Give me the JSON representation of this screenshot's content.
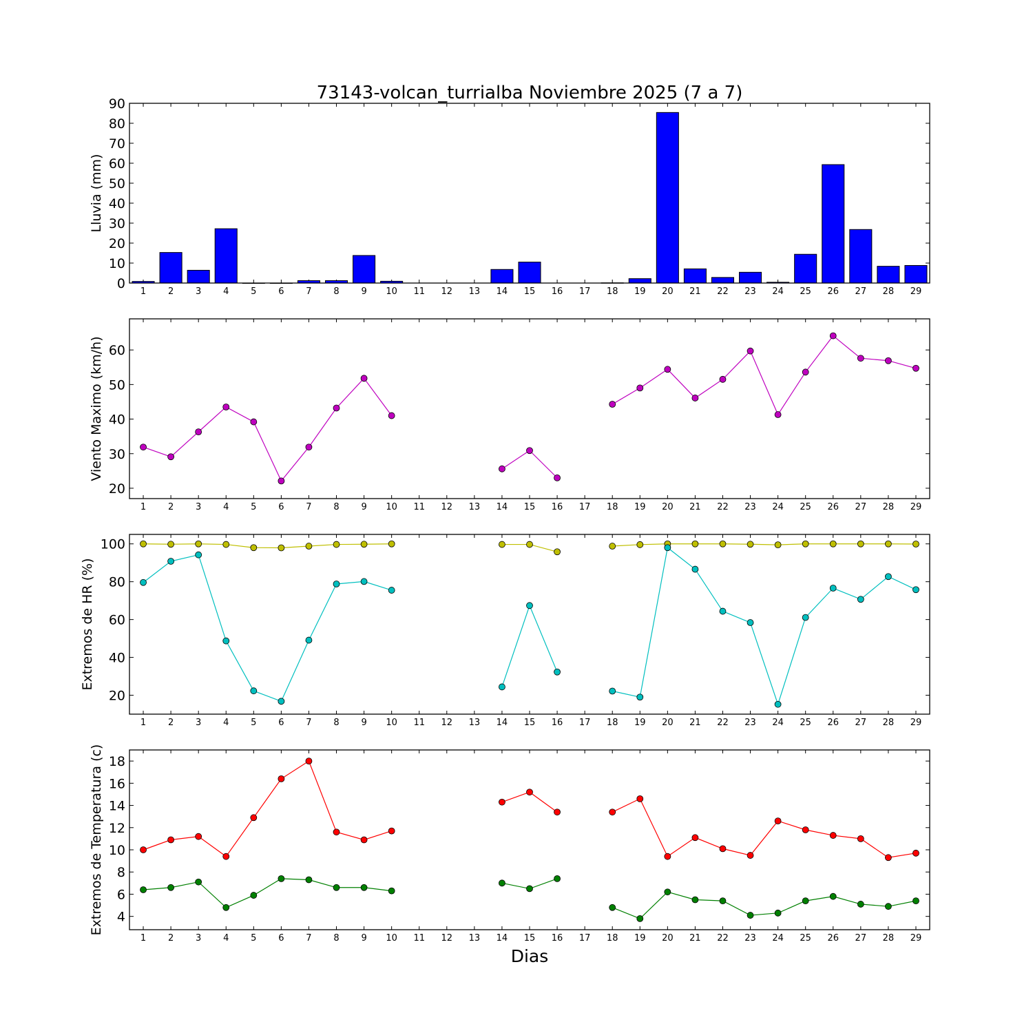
{
  "title": "73143-volcan_turrialba Noviembre 2025  (7 a 7)",
  "xlabel": "Dias",
  "chart_data": [
    {
      "type": "bar",
      "ylabel": "Lluvia (mm)",
      "ylim": [
        0,
        90
      ],
      "yticks": [
        0,
        10,
        20,
        30,
        40,
        50,
        60,
        70,
        80,
        90
      ],
      "categories": [
        1,
        2,
        3,
        4,
        5,
        6,
        7,
        8,
        9,
        10,
        11,
        12,
        13,
        14,
        15,
        16,
        17,
        18,
        19,
        20,
        21,
        22,
        23,
        24,
        25,
        26,
        27,
        28,
        29
      ],
      "series": [
        {
          "color": "#0000ff",
          "values": [
            0.8,
            15.3,
            6.4,
            27.2,
            0,
            0,
            1.2,
            1.2,
            13.8,
            0.9,
            null,
            null,
            null,
            6.8,
            10.5,
            null,
            null,
            0.1,
            2.2,
            85.4,
            7.1,
            2.8,
            5.4,
            0.4,
            14.4,
            59.3,
            26.8,
            8.4,
            8.8
          ]
        }
      ]
    },
    {
      "type": "line",
      "ylabel": "Viento Maximo (km/h)",
      "ylim": [
        17,
        69
      ],
      "yticks": [
        20,
        30,
        40,
        50,
        60
      ],
      "categories": [
        1,
        2,
        3,
        4,
        5,
        6,
        7,
        8,
        9,
        10,
        11,
        12,
        13,
        14,
        15,
        16,
        17,
        18,
        19,
        20,
        21,
        22,
        23,
        24,
        25,
        26,
        27,
        28,
        29
      ],
      "series": [
        {
          "color": "#bf00bf",
          "values": [
            31.9,
            29.1,
            36.3,
            43.5,
            39.2,
            22.1,
            31.9,
            43.2,
            51.8,
            41.0,
            null,
            null,
            null,
            25.6,
            30.9,
            23.0,
            null,
            44.3,
            49.0,
            54.4,
            46.1,
            51.5,
            59.7,
            41.3,
            53.6,
            64.1,
            57.6,
            56.9,
            54.7
          ]
        }
      ]
    },
    {
      "type": "line",
      "ylabel": "Extremos de HR (%)",
      "ylim": [
        10,
        105
      ],
      "yticks": [
        20,
        40,
        60,
        80,
        100
      ],
      "categories": [
        1,
        2,
        3,
        4,
        5,
        6,
        7,
        8,
        9,
        10,
        11,
        12,
        13,
        14,
        15,
        16,
        17,
        18,
        19,
        20,
        21,
        22,
        23,
        24,
        25,
        26,
        27,
        28,
        29
      ],
      "series": [
        {
          "color": "#bfbf00",
          "values": [
            100,
            99.8,
            100,
            99.7,
            98,
            97.9,
            98.8,
            99.7,
            99.8,
            100,
            null,
            null,
            null,
            99.7,
            99.7,
            95.8,
            null,
            98.8,
            99.6,
            100,
            100,
            100,
            99.8,
            99.5,
            100,
            100,
            100,
            100,
            99.9
          ]
        },
        {
          "color": "#00bfbf",
          "values": [
            79.6,
            90.8,
            94.2,
            48.7,
            22.3,
            16.8,
            49.1,
            78.8,
            80.1,
            75.5,
            null,
            null,
            null,
            24.4,
            67.4,
            32.3,
            null,
            22.2,
            19.0,
            98.0,
            86.6,
            64.4,
            58.4,
            15.2,
            61.1,
            76.6,
            70.7,
            82.7,
            75.8
          ]
        }
      ]
    },
    {
      "type": "line",
      "ylabel": "Extremos de Temperatura (c)",
      "ylim": [
        2.8,
        19
      ],
      "yticks": [
        4,
        6,
        8,
        10,
        12,
        14,
        16,
        18
      ],
      "categories": [
        1,
        2,
        3,
        4,
        5,
        6,
        7,
        8,
        9,
        10,
        11,
        12,
        13,
        14,
        15,
        16,
        17,
        18,
        19,
        20,
        21,
        22,
        23,
        24,
        25,
        26,
        27,
        28,
        29
      ],
      "series": [
        {
          "color": "#ff0000",
          "values": [
            10.0,
            10.9,
            11.2,
            9.4,
            12.9,
            16.4,
            18.0,
            11.6,
            10.9,
            11.7,
            null,
            null,
            null,
            14.3,
            15.2,
            13.4,
            null,
            13.4,
            14.6,
            9.4,
            11.1,
            10.1,
            9.5,
            12.6,
            11.8,
            11.3,
            11.0,
            9.3,
            9.7
          ]
        },
        {
          "color": "#008000",
          "values": [
            6.4,
            6.6,
            7.1,
            4.8,
            5.9,
            7.4,
            7.3,
            6.6,
            6.6,
            6.3,
            null,
            null,
            null,
            7.0,
            6.5,
            7.4,
            null,
            4.8,
            3.8,
            6.2,
            5.5,
            5.4,
            4.1,
            4.3,
            5.4,
            5.8,
            5.1,
            4.9,
            5.4
          ]
        }
      ]
    }
  ]
}
